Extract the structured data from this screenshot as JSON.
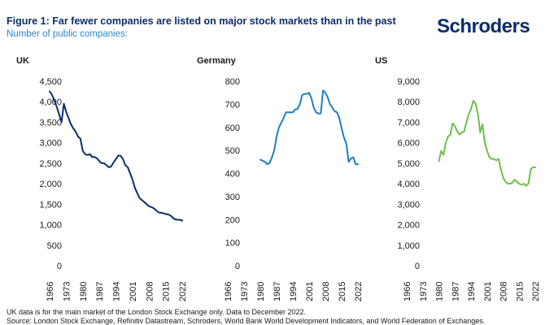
{
  "figure": {
    "title": "Figure 1: Far fewer companies are listed on major stock markets than in the past",
    "subtitle": "Number of public companies:"
  },
  "logo": {
    "text": "Schroders"
  },
  "footnotes": [
    "UK data is for the main market of the London Stock Exchange only. Data to December 2022.",
    "Source: London Stock Exchange, Refinitiv Datastream, Schroders, World Bank World Development Indicators, and World Federation of Exchanges."
  ],
  "colors": {
    "title": "#0b2d6b",
    "subtitle": "#2e86c8",
    "uk": "#0b2d6b",
    "germany": "#1f7fc0",
    "us": "#6cc04a"
  },
  "chart_data": [
    {
      "type": "line",
      "title": "UK",
      "xlim": [
        1966,
        2022
      ],
      "xticks": [
        "1966",
        "1973",
        "1980",
        "1987",
        "1994",
        "2001",
        "2008",
        "2015",
        "2022"
      ],
      "ylim": [
        0,
        4500
      ],
      "yticks": [
        "4,500",
        "4,000",
        "3,500",
        "3,000",
        "2,500",
        "2,000",
        "1,500",
        "1,000",
        "500",
        "0"
      ],
      "grid": false,
      "series": [
        {
          "x": [
            1966,
            1967,
            1968,
            1969,
            1970,
            1971,
            1972,
            1973,
            1974,
            1975,
            1976,
            1977,
            1978,
            1979,
            1980,
            1981,
            1982,
            1983,
            1984,
            1985,
            1986,
            1987,
            1988,
            1989,
            1990,
            1991,
            1992,
            1993,
            1994,
            1995,
            1996,
            1997,
            1998,
            1999,
            2000,
            2001,
            2002,
            2003,
            2004,
            2005,
            2006,
            2007,
            2008,
            2009,
            2010,
            2011,
            2012,
            2013,
            2014,
            2015,
            2016,
            2017,
            2018,
            2019,
            2020,
            2021,
            2022
          ],
          "y": [
            4250,
            4170,
            4030,
            3880,
            3700,
            3500,
            3950,
            3750,
            3600,
            3450,
            3350,
            3270,
            3150,
            3100,
            2800,
            2720,
            2700,
            2720,
            2650,
            2650,
            2620,
            2550,
            2500,
            2500,
            2450,
            2400,
            2420,
            2520,
            2600,
            2690,
            2680,
            2600,
            2450,
            2400,
            2250,
            2100,
            1900,
            1770,
            1650,
            1600,
            1550,
            1500,
            1450,
            1430,
            1400,
            1350,
            1300,
            1290,
            1280,
            1260,
            1250,
            1230,
            1170,
            1130,
            1120,
            1120,
            1100
          ]
        }
      ]
    },
    {
      "type": "line",
      "title": "Germany",
      "xlim": [
        1966,
        2022
      ],
      "xticks": [
        "1966",
        "1973",
        "1980",
        "1987",
        "1994",
        "2001",
        "2008",
        "2015",
        "2022"
      ],
      "ylim": [
        0,
        800
      ],
      "yticks": [
        "800",
        "700",
        "600",
        "500",
        "400",
        "300",
        "200",
        "100",
        "0"
      ],
      "grid": false,
      "series": [
        {
          "x": [
            1980,
            1981,
            1982,
            1983,
            1984,
            1985,
            1986,
            1987,
            1988,
            1989,
            1990,
            1991,
            1992,
            1993,
            1994,
            1995,
            1996,
            1997,
            1998,
            1999,
            2000,
            2001,
            2002,
            2003,
            2004,
            2005,
            2006,
            2007,
            2008,
            2009,
            2010,
            2011,
            2012,
            2013,
            2014,
            2015,
            2016,
            2017,
            2018,
            2019,
            2020,
            2021,
            2022
          ],
          "y": [
            460,
            455,
            450,
            440,
            445,
            470,
            500,
            560,
            600,
            620,
            640,
            665,
            665,
            665,
            665,
            678,
            680,
            700,
            740,
            745,
            745,
            750,
            725,
            685,
            665,
            660,
            660,
            760,
            750,
            730,
            700,
            685,
            670,
            665,
            640,
            595,
            555,
            530,
            450,
            465,
            470,
            440,
            440
          ]
        }
      ]
    },
    {
      "type": "line",
      "title": "US",
      "xlim": [
        1966,
        2022
      ],
      "xticks": [
        "1966",
        "1973",
        "1980",
        "1987",
        "1994",
        "2001",
        "2008",
        "2015",
        "2022"
      ],
      "ylim": [
        0,
        9000
      ],
      "yticks": [
        "9,000",
        "8,000",
        "7,000",
        "6,000",
        "5,000",
        "4,000",
        "3,000",
        "2,000",
        "1,000",
        "0"
      ],
      "grid": false,
      "series": [
        {
          "x": [
            1980,
            1981,
            1982,
            1983,
            1984,
            1985,
            1986,
            1987,
            1988,
            1989,
            1990,
            1991,
            1992,
            1993,
            1994,
            1995,
            1996,
            1997,
            1998,
            1999,
            2000,
            2001,
            2002,
            2003,
            2004,
            2005,
            2006,
            2007,
            2008,
            2009,
            2010,
            2011,
            2012,
            2013,
            2014,
            2015,
            2016,
            2017,
            2018,
            2019,
            2020,
            2021,
            2022
          ],
          "y": [
            5100,
            5600,
            5400,
            6000,
            6300,
            6400,
            6950,
            6800,
            6550,
            6400,
            6500,
            6550,
            7000,
            7400,
            7650,
            8050,
            7900,
            7400,
            6500,
            6900,
            6000,
            5600,
            5300,
            5200,
            5200,
            5150,
            5200,
            4700,
            4300,
            4100,
            4000,
            4000,
            4050,
            4200,
            4100,
            4000,
            3950,
            4000,
            3900,
            4000,
            4700,
            4800,
            4800
          ]
        }
      ]
    }
  ]
}
